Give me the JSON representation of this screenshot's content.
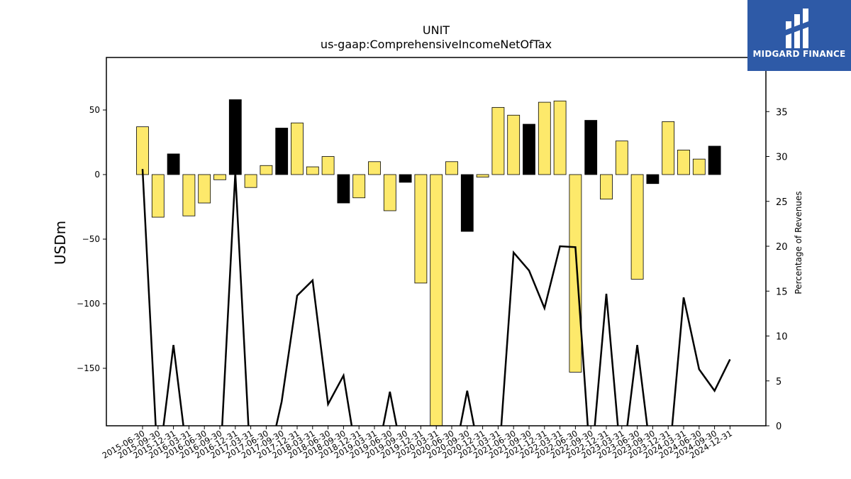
{
  "brand": {
    "name": "MIDGARD FINANCE",
    "logo_icon": "midgard-logo-icon",
    "background": "#2e5aa7"
  },
  "chart_data": {
    "type": "bar",
    "title": "UNIT",
    "subtitle": "us-gaap:ComprehensiveIncomeNetOfTax",
    "ylabel": "USDm",
    "y2label": "Percentage of Revenues",
    "ylim": [
      -195,
      90
    ],
    "y2lim": [
      0,
      38
    ],
    "yticks": [
      50,
      0,
      -50,
      -100,
      -150
    ],
    "y2ticks": [
      0,
      5,
      10,
      15,
      20,
      25,
      30,
      35
    ],
    "colors": {
      "yellow": "#fde96b",
      "black": "#000000",
      "line": "#000000"
    },
    "categories": [
      "2015-06-30",
      "2015-09-30",
      "2015-12-31",
      "2016-03-31",
      "2016-06-30",
      "2016-09-30",
      "2016-12-31",
      "2017-03-31",
      "2017-06-30",
      "2017-09-30",
      "2017-12-31",
      "2018-03-31",
      "2018-06-30",
      "2018-09-30",
      "2018-12-31",
      "2019-03-31",
      "2019-06-30",
      "2019-09-30",
      "2019-12-31",
      "2020-03-31",
      "2020-06-30",
      "2020-09-30",
      "2020-12-31",
      "2021-03-31",
      "2021-06-30",
      "2021-09-30",
      "2021-12-31",
      "2022-03-31",
      "2022-06-30",
      "2022-09-30",
      "2022-12-31",
      "2023-03-31",
      "2023-06-30",
      "2023-09-30",
      "2023-12-31",
      "2024-03-31",
      "2024-06-30",
      "2024-09-30",
      "2024-12-31"
    ],
    "values": [
      37,
      -33,
      16,
      -32,
      -22,
      -4,
      58,
      -10,
      7,
      36,
      40,
      6,
      14,
      -22,
      -18,
      10,
      -28,
      -6,
      -84,
      -195,
      10,
      -44,
      -2,
      52,
      46,
      39,
      56,
      57,
      -153,
      42,
      -19,
      26,
      -81,
      -7,
      41,
      19,
      12,
      22,
      null
    ],
    "bar_colors": [
      "yellow",
      "yellow",
      "black",
      "yellow",
      "yellow",
      "yellow",
      "black",
      "yellow",
      "yellow",
      "black",
      "yellow",
      "yellow",
      "yellow",
      "black",
      "yellow",
      "yellow",
      "yellow",
      "black",
      "yellow",
      "yellow",
      "yellow",
      "black",
      "yellow",
      "yellow",
      "yellow",
      "black",
      "yellow",
      "yellow",
      "yellow",
      "black",
      "yellow",
      "yellow",
      "yellow",
      "black",
      "yellow",
      "yellow",
      "yellow",
      "black",
      null
    ],
    "line_series": {
      "name": "",
      "values": [
        28.6,
        -5,
        9,
        -5,
        -5,
        -5,
        28.2,
        -5,
        -5,
        2.7,
        14.5,
        16.2,
        2.4,
        5.6,
        -5,
        -5,
        3.8,
        -5,
        -5,
        -5,
        -5,
        3.9,
        -5,
        -5,
        19.3,
        17.3,
        13.1,
        20.0,
        19.9,
        -5,
        14.7,
        -5,
        9.0,
        -5,
        -5,
        14.3,
        6.3,
        3.9,
        7.4
      ]
    }
  }
}
